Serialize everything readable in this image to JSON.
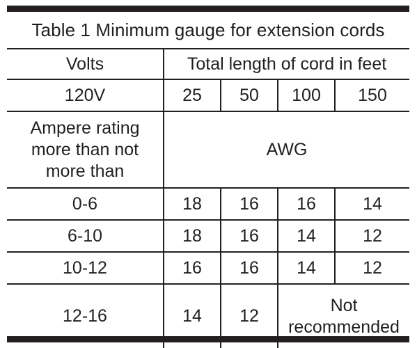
{
  "table": {
    "title": "Table 1 Minimum gauge for extension cords",
    "volts_label": "Volts",
    "length_header": "Total length of cord in feet",
    "voltage": "120V",
    "lengths": [
      "25",
      "50",
      "100",
      "150"
    ],
    "ampere_label": "Ampere rating more than not more than",
    "ampere_label_lines": [
      "Ampere rating",
      "more than not",
      "more than"
    ],
    "unit_label": "AWG",
    "rows": [
      {
        "range": "0-6",
        "gauges": [
          "18",
          "16",
          "16",
          "14"
        ]
      },
      {
        "range": "6-10",
        "gauges": [
          "18",
          "16",
          "14",
          "12"
        ]
      },
      {
        "range": "10-12",
        "gauges": [
          "16",
          "16",
          "14",
          "12"
        ]
      },
      {
        "range": "12-16",
        "gauges": [
          "14",
          "12"
        ],
        "note_lines": [
          "Not",
          "recommended"
        ]
      }
    ]
  }
}
